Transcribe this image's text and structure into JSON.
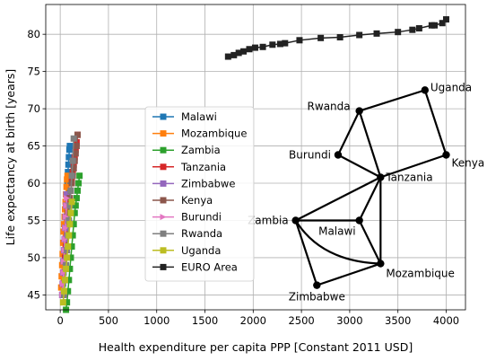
{
  "chart_data": {
    "type": "line",
    "xlabel": "Health expenditure per capita PPP [Constant 2011 USD]",
    "ylabel": "Life expectancy at birth [years]",
    "xlim": [
      -150,
      4200
    ],
    "ylim": [
      43,
      84
    ],
    "grid": true,
    "legend_position": "center-left",
    "x_ticks": [
      0,
      500,
      1000,
      1500,
      2000,
      2500,
      3000,
      3500,
      4000
    ],
    "y_ticks": [
      45,
      50,
      55,
      60,
      65,
      70,
      75,
      80
    ],
    "series": [
      {
        "name": "Malawi",
        "color": "#1f77b4",
        "marker": "square",
        "x": [
          25,
          30,
          35,
          40,
          45,
          50,
          55,
          60,
          65,
          70,
          75,
          80,
          85,
          90,
          95,
          100
        ],
        "y": [
          45,
          46.5,
          48,
          49.5,
          51,
          52.5,
          54,
          55.5,
          57,
          58.5,
          60,
          61.5,
          62.5,
          63.5,
          64.5,
          65
        ]
      },
      {
        "name": "Mozambique",
        "color": "#ff7f0e",
        "marker": "square",
        "x": [
          10,
          15,
          20,
          25,
          30,
          35,
          40,
          45,
          50,
          55,
          60,
          65,
          70,
          75
        ],
        "y": [
          46,
          47.5,
          49,
          50.5,
          52,
          53.5,
          54.5,
          55.5,
          56.5,
          57.5,
          58.5,
          59.5,
          60.5,
          61
        ]
      },
      {
        "name": "Zambia",
        "color": "#2ca02c",
        "marker": "square",
        "x": [
          60,
          70,
          80,
          90,
          100,
          110,
          120,
          130,
          140,
          150,
          160,
          170,
          180,
          190,
          200
        ],
        "y": [
          43,
          44,
          45.5,
          47,
          48.5,
          50,
          51.5,
          53,
          54.5,
          56,
          57,
          58,
          59,
          60,
          61
        ]
      },
      {
        "name": "Tanzania",
        "color": "#d62728",
        "marker": "square",
        "x": [
          50,
          60,
          70,
          80,
          90,
          100,
          110,
          120,
          130,
          140,
          150,
          160,
          170,
          180
        ],
        "y": [
          50,
          51.5,
          53,
          54.5,
          56,
          57.5,
          59,
          60.5,
          61.5,
          62.5,
          63.5,
          64.5,
          65.5,
          66.5
        ]
      },
      {
        "name": "Zimbabwe",
        "color": "#9467bd",
        "marker": "square",
        "x": [
          20,
          25,
          30,
          35,
          40,
          45,
          50,
          55,
          60,
          65
        ],
        "y": [
          45,
          46.5,
          48,
          49.5,
          51,
          52.5,
          54,
          55.5,
          57,
          58.5
        ]
      },
      {
        "name": "Kenya",
        "color": "#8c564b",
        "marker": "square",
        "x": [
          80,
          90,
          100,
          110,
          120,
          130,
          140,
          150,
          160,
          170,
          180
        ],
        "y": [
          56,
          57,
          58,
          59,
          60,
          61,
          62,
          63,
          64,
          65,
          66.5
        ]
      },
      {
        "name": "Burundi",
        "color": "#e377c2",
        "marker": "triangle-right",
        "x": [
          25,
          30,
          35,
          40,
          45,
          50,
          55,
          60,
          65,
          70
        ],
        "y": [
          45,
          46.5,
          48,
          49.5,
          51,
          52.5,
          54,
          55.5,
          57,
          58
        ]
      },
      {
        "name": "Rwanda",
        "color": "#7f7f7f",
        "marker": "square",
        "x": [
          40,
          50,
          60,
          70,
          80,
          90,
          100,
          110,
          120,
          130,
          140
        ],
        "y": [
          45,
          47,
          49,
          51,
          53,
          55,
          57,
          59,
          61,
          63,
          66
        ]
      },
      {
        "name": "Uganda",
        "color": "#bcbd22",
        "marker": "square",
        "x": [
          30,
          40,
          50,
          60,
          70,
          80,
          90,
          100,
          110,
          120
        ],
        "y": [
          44,
          45.5,
          47,
          48.5,
          50,
          51.5,
          53,
          54.5,
          56,
          57.5
        ]
      },
      {
        "name": "EURO Area",
        "color": "#222222",
        "marker": "square",
        "x": [
          1740,
          1800,
          1850,
          1900,
          1960,
          2020,
          2100,
          2200,
          2280,
          2330,
          2480,
          2700,
          2900,
          3100,
          3280,
          3500,
          3650,
          3720,
          3850,
          3880,
          3960,
          4000
        ],
        "y": [
          77,
          77.2,
          77.5,
          77.7,
          78,
          78.2,
          78.3,
          78.6,
          78.7,
          78.8,
          79.2,
          79.5,
          79.6,
          79.9,
          80.1,
          80.3,
          80.6,
          80.8,
          81.2,
          81.2,
          81.5,
          82
        ]
      }
    ],
    "network": {
      "nodes": [
        {
          "name": "Uganda",
          "x": 3780,
          "y": 72.5,
          "label_anchor": "right"
        },
        {
          "name": "Rwanda",
          "x": 3100,
          "y": 69.7,
          "label_anchor": "left"
        },
        {
          "name": "Kenya",
          "x": 4000,
          "y": 63.8,
          "label_anchor": "right"
        },
        {
          "name": "Burundi",
          "x": 2880,
          "y": 63.8,
          "label_anchor": "left"
        },
        {
          "name": "Tanzania",
          "x": 3320,
          "y": 60.8,
          "label_anchor": "right"
        },
        {
          "name": "Zambia",
          "x": 2440,
          "y": 55,
          "label_anchor": "left"
        },
        {
          "name": "Malawi",
          "x": 3100,
          "y": 55,
          "label_anchor": "below-left"
        },
        {
          "name": "Mozambique",
          "x": 3320,
          "y": 49.2,
          "label_anchor": "right"
        },
        {
          "name": "Zimbabwe",
          "x": 2660,
          "y": 46.3,
          "label_anchor": "below"
        }
      ],
      "edges": [
        [
          "Rwanda",
          "Uganda"
        ],
        [
          "Uganda",
          "Kenya"
        ],
        [
          "Kenya",
          "Tanzania"
        ],
        [
          "Rwanda",
          "Burundi"
        ],
        [
          "Rwanda",
          "Tanzania"
        ],
        [
          "Burundi",
          "Tanzania"
        ],
        [
          "Tanzania",
          "Zambia"
        ],
        [
          "Tanzania",
          "Malawi"
        ],
        [
          "Tanzania",
          "Mozambique"
        ],
        [
          "Zambia",
          "Malawi"
        ],
        [
          "Zambia",
          "Zimbabwe"
        ],
        [
          "Malawi",
          "Mozambique"
        ],
        [
          "Zimbabwe",
          "Mozambique"
        ]
      ],
      "curved_edges": [
        [
          "Zambia",
          "Mozambique"
        ]
      ]
    }
  }
}
